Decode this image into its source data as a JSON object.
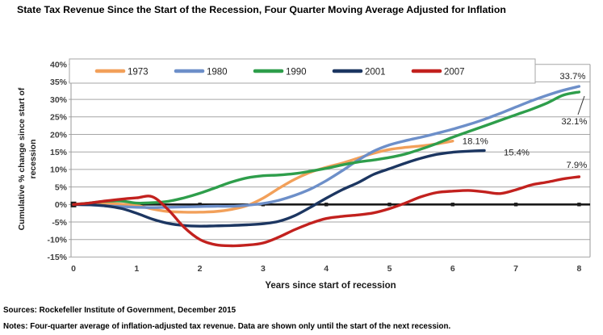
{
  "title": "State Tax Revenue Since the Start of the Recession, Four Quarter Moving Average Adjusted for Inflation",
  "chart_data": {
    "type": "line",
    "title": "State Tax Revenue Since the Start of the Recession, Four Quarter Moving Average Adjusted for Inflation",
    "xlabel": "Years since start of recession",
    "ylabel": "Cumulative % change since start of recession",
    "ylabel_line1": "Cumulative % change since start of",
    "ylabel_line2": "recession",
    "x_ticks": [
      "0",
      "1",
      "2",
      "3",
      "4",
      "5",
      "6",
      "7",
      "8"
    ],
    "y_ticks": [
      "40%",
      "35%",
      "30%",
      "25%",
      "20%",
      "15%",
      "10%",
      "5%",
      "0%",
      "-5%",
      "-10%",
      "-15%"
    ],
    "x_min": 0,
    "x_max": 8,
    "y_min": -15,
    "y_max": 40,
    "y_step": 5,
    "grid": true,
    "legend_position": "top-inside",
    "colors": {
      "grid": "#a6a6a6",
      "border": "#9a9a9a",
      "zero_line": "#1a1a1a",
      "tick_text": "#3f3f3f",
      "label_text": "#1f1f1f"
    },
    "zero_line": {
      "value": 0,
      "marker_years": [
        0,
        1,
        2,
        3,
        4,
        5,
        6,
        7,
        8
      ]
    },
    "series": [
      {
        "name": "1973",
        "color": "#F2A05A",
        "end_label": "18.1%",
        "x_start": 0,
        "x_step": 0.25,
        "y": [
          0,
          0.2,
          0.3,
          0.1,
          -0.3,
          -1.3,
          -2.0,
          -2.2,
          -2.2,
          -2.0,
          -1.4,
          -0.3,
          1.8,
          4.6,
          7.2,
          9.2,
          10.6,
          11.8,
          13.2,
          14.6,
          15.7,
          16.3,
          16.7,
          17.3,
          18.1
        ]
      },
      {
        "name": "1980",
        "color": "#6D8FC9",
        "end_label": "33.7%",
        "x_start": 0,
        "x_step": 0.25,
        "y": [
          0,
          -0.1,
          -0.4,
          -0.6,
          -0.8,
          -0.9,
          -0.8,
          -0.7,
          -0.6,
          -0.5,
          -0.5,
          -0.2,
          0.3,
          1.2,
          2.6,
          4.4,
          6.8,
          9.6,
          12.6,
          15.2,
          17.0,
          18.2,
          19.2,
          20.3,
          21.5,
          22.8,
          24.3,
          26.0,
          27.8,
          29.6,
          31.2,
          32.6,
          33.7
        ]
      },
      {
        "name": "1990",
        "color": "#2E9E4B",
        "end_label": "32.1%",
        "x_start": 0,
        "x_step": 0.25,
        "y": [
          0,
          0.4,
          0.9,
          1.0,
          0.4,
          0.5,
          0.9,
          1.9,
          3.2,
          4.8,
          6.4,
          7.6,
          8.2,
          8.4,
          8.8,
          9.5,
          10.3,
          11.3,
          12.1,
          12.7,
          13.4,
          14.4,
          15.8,
          17.4,
          19.2,
          20.8,
          22.4,
          24.0,
          25.6,
          27.2,
          29.0,
          31.2,
          32.1
        ]
      },
      {
        "name": "2001",
        "color": "#1C3661",
        "end_label": "15.4%",
        "x_start": 0,
        "x_step": 0.25,
        "y": [
          0,
          -0.1,
          -0.4,
          -1.1,
          -2.5,
          -4.2,
          -5.4,
          -6.0,
          -6.2,
          -6.1,
          -6.0,
          -5.8,
          -5.5,
          -4.8,
          -3.2,
          -0.8,
          1.8,
          4.2,
          6.2,
          8.6,
          10.2,
          11.8,
          13.2,
          14.3,
          14.9,
          15.2,
          15.4
        ]
      },
      {
        "name": "2007",
        "color": "#C2211E",
        "end_label": "7.9%",
        "x_start": 0,
        "x_step": 0.25,
        "y": [
          0,
          0.4,
          1.0,
          1.5,
          1.9,
          2.2,
          -1.5,
          -6.5,
          -10.0,
          -11.5,
          -11.8,
          -11.6,
          -11.0,
          -9.3,
          -7.2,
          -5.4,
          -4.0,
          -3.4,
          -3.0,
          -2.4,
          -1.2,
          0.4,
          2.2,
          3.4,
          3.8,
          4.0,
          3.6,
          3.1,
          4.2,
          5.6,
          6.4,
          7.3,
          7.9
        ]
      }
    ]
  },
  "footer": {
    "sources": "Sources: Rockefeller Institute of Government, December 2015",
    "notes": "Notes: Four-quarter average of inflation-adjusted tax revenue. Data are shown only until the start of the next recession."
  }
}
